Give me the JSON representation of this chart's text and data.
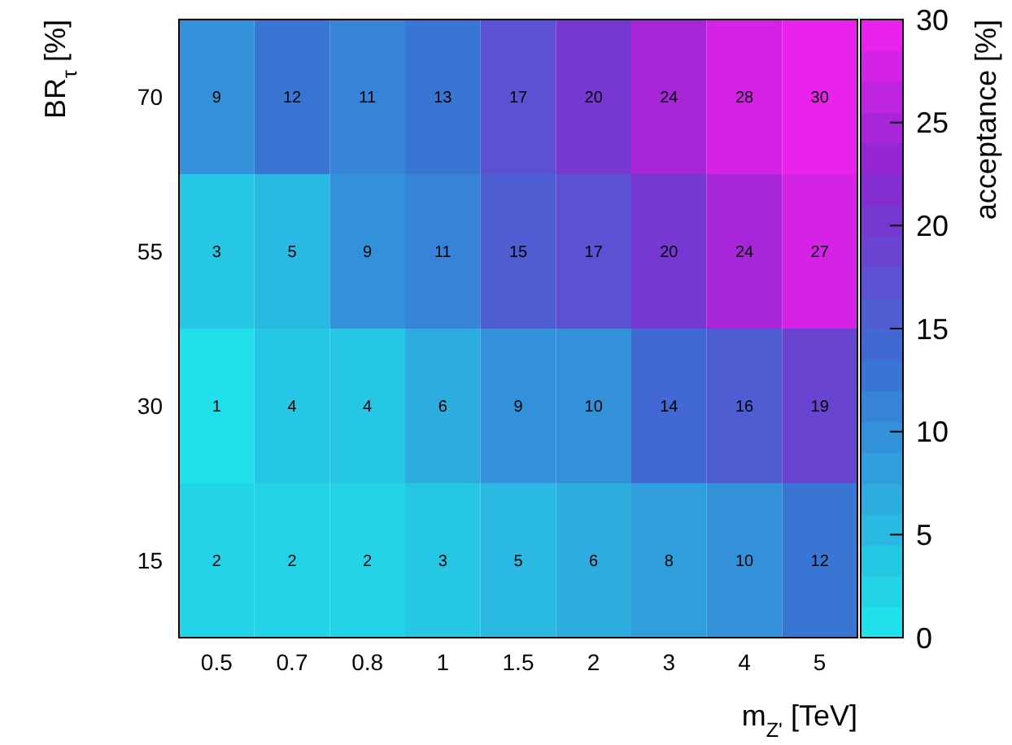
{
  "chart_data": {
    "type": "heatmap",
    "xlabel": "m$_{Z'}$ [TeV]",
    "ylabel": "BR$_{τ}$ [%]",
    "clabel": "acceptance [%]",
    "categories": [
      "0.5",
      "0.7",
      "0.8",
      "1",
      "1.5",
      "2",
      "3",
      "4",
      "5"
    ],
    "y_categories": [
      "70",
      "55",
      "30",
      "15"
    ],
    "cells": [
      [
        9,
        12,
        11,
        13,
        17,
        20,
        24,
        28,
        30
      ],
      [
        3,
        5,
        9,
        11,
        15,
        17,
        20,
        24,
        27
      ],
      [
        1,
        4,
        4,
        6,
        9,
        10,
        14,
        16,
        19
      ],
      [
        2,
        2,
        2,
        3,
        5,
        6,
        8,
        10,
        12
      ]
    ],
    "data_labels": true,
    "clim": [
      0,
      30
    ],
    "cticks": [
      0,
      5,
      10,
      15,
      20,
      25,
      30
    ]
  }
}
